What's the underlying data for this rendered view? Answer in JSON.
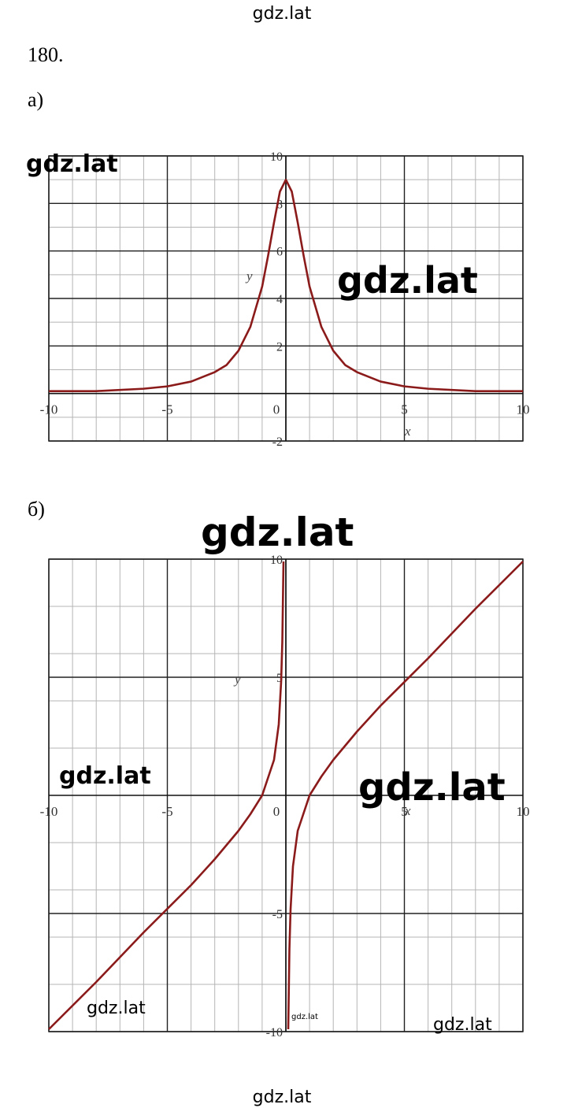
{
  "header": "gdz.lat",
  "problem": "180.",
  "footer": "gdz.lat",
  "watermarks": [
    "gdz.lat",
    "gdz.lat",
    "gdz.lat",
    "gdz.lat",
    "gdz.lat",
    "gdz.lat",
    "gdz.lat",
    "gdz.lat"
  ],
  "chart_data": [
    {
      "type": "line",
      "label": "а)",
      "x_label": "x",
      "y_label": "y",
      "xlim": [
        -10,
        10
      ],
      "ylim": [
        -2,
        10
      ],
      "xticks": [
        -10,
        -5,
        0,
        5,
        10
      ],
      "yticks": [
        -2,
        2,
        4,
        6,
        8,
        10
      ],
      "grid": true,
      "x": [
        -10,
        -8,
        -6,
        -5,
        -4,
        -3,
        -2.5,
        -2,
        -1.5,
        -1,
        -0.75,
        -0.5,
        -0.25,
        0,
        0.25,
        0.5,
        0.75,
        1,
        1.5,
        2,
        2.5,
        3,
        4,
        5,
        6,
        8,
        10
      ],
      "series": [
        {
          "color": "#8b1a1a",
          "values": [
            0.1,
            0.1,
            0.2,
            0.3,
            0.5,
            0.9,
            1.2,
            1.8,
            2.8,
            4.5,
            5.8,
            7.2,
            8.5,
            9,
            8.5,
            7.2,
            5.8,
            4.5,
            2.8,
            1.8,
            1.2,
            0.9,
            0.5,
            0.3,
            0.2,
            0.1,
            0.1
          ]
        }
      ]
    },
    {
      "type": "line",
      "label": "б)",
      "x_label": "x",
      "y_label": "y",
      "xlim": [
        -10,
        10
      ],
      "ylim": [
        -10,
        10
      ],
      "xticks": [
        -10,
        -5,
        0,
        5,
        10
      ],
      "yticks": [
        -10,
        -5,
        5,
        10
      ],
      "grid": true,
      "x": [
        -10,
        -8,
        -6,
        -4,
        -3,
        -2,
        -1.5,
        -1,
        -0.5,
        -0.3,
        -0.2,
        -0.15,
        -0.1,
        0,
        0.1,
        0.15,
        0.2,
        0.3,
        0.5,
        1,
        1.5,
        2,
        3,
        4,
        6,
        8,
        10
      ],
      "series": [
        {
          "color": "#8b1a1a",
          "values": [
            -9.9,
            -7.9,
            -5.8,
            -3.8,
            -2.7,
            -1.5,
            -0.8,
            0,
            1.5,
            3.0,
            4.8,
            6.5,
            9.9,
            null,
            -9.9,
            -6.5,
            -4.8,
            -3.0,
            -1.5,
            0,
            0.8,
            1.5,
            2.7,
            3.8,
            5.8,
            7.9,
            9.9
          ]
        }
      ]
    }
  ]
}
